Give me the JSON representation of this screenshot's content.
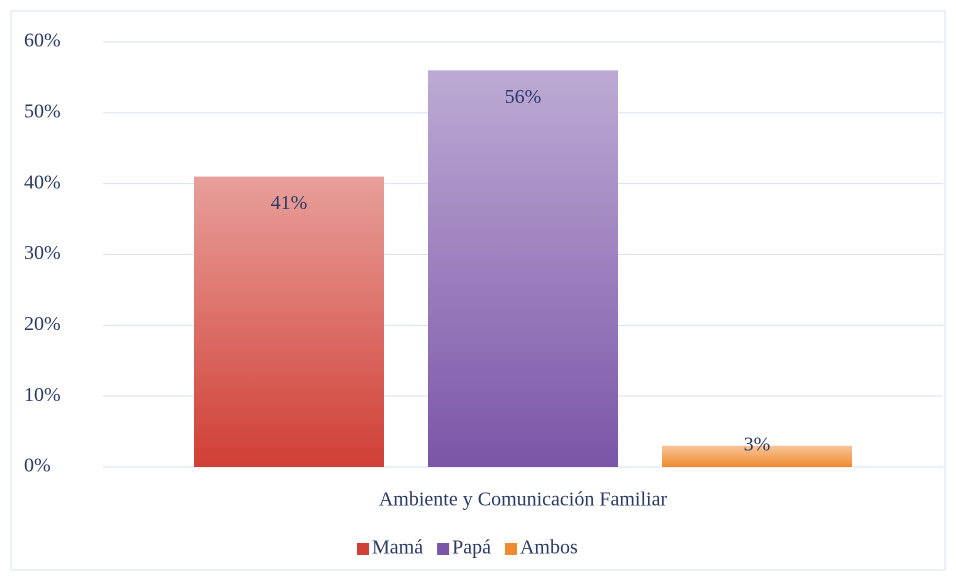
{
  "chart_data": {
    "type": "bar",
    "categories": [
      "Ambiente y Comunicación Familiar"
    ],
    "series": [
      {
        "name": "Mamá",
        "color": "#d03f35",
        "values": [
          41
        ],
        "value_labels": [
          "41%"
        ]
      },
      {
        "name": "Papá",
        "color": "#7b55a8",
        "values": [
          56
        ],
        "value_labels": [
          "56%"
        ]
      },
      {
        "name": "Ambos",
        "color": "#f08a30",
        "values": [
          3
        ],
        "value_labels": [
          "3%"
        ]
      }
    ],
    "ylim": [
      0,
      60
    ],
    "yticks": [
      {
        "value": 0,
        "label": "0%"
      },
      {
        "value": 10,
        "label": "10%"
      },
      {
        "value": 20,
        "label": "20%"
      },
      {
        "value": 30,
        "label": "30%"
      },
      {
        "value": 40,
        "label": "40%"
      },
      {
        "value": 50,
        "label": "50%"
      },
      {
        "value": 60,
        "label": "60%"
      }
    ],
    "grid": true,
    "legend": "bottom"
  }
}
